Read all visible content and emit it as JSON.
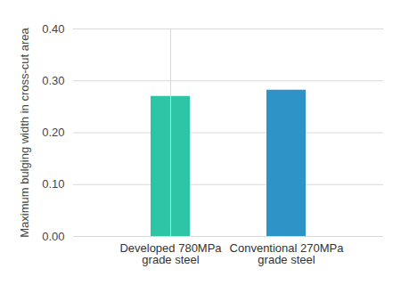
{
  "chart_data": {
    "type": "bar",
    "y_label": "Maximum bulging width in cross-cut area",
    "categories": [
      "Developed 780MPa\ngrade steel",
      "Conventional 270MPa\ngrade steel"
    ],
    "values": [
      0.27,
      0.282
    ],
    "colors": [
      "#2ec4a6",
      "#2e94c8"
    ],
    "ylim": [
      0,
      0.4
    ],
    "yticks": [
      0,
      0.1,
      0.2,
      0.3,
      0.4
    ],
    "grid": true
  }
}
